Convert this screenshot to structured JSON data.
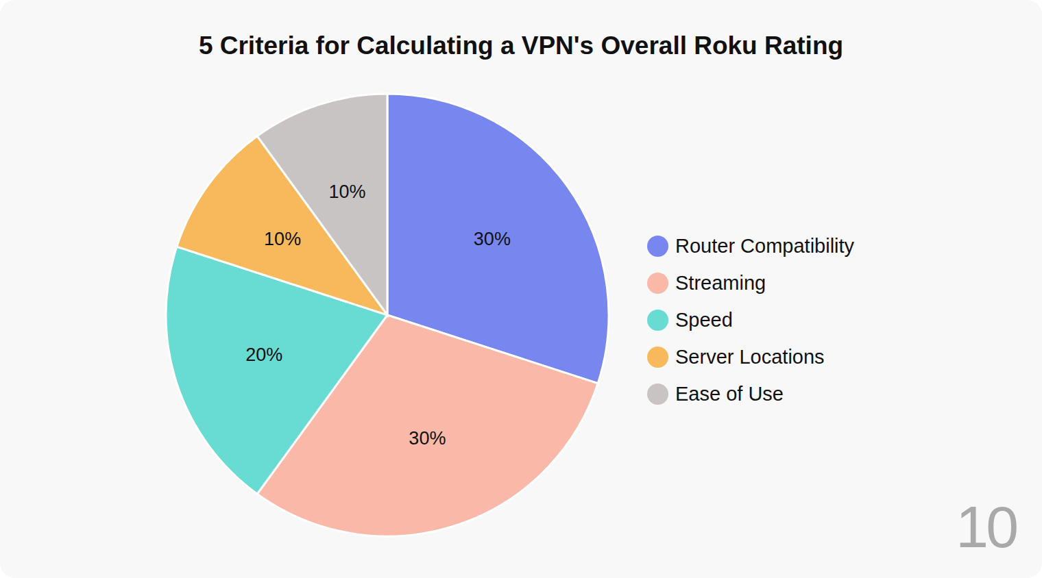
{
  "chart_data": {
    "type": "pie",
    "title": "5 Criteria for Calculating a VPN's Overall Roku Rating",
    "categories": [
      "Router Compatibility",
      "Streaming",
      "Speed",
      "Server Locations",
      "Ease of Use"
    ],
    "values": [
      30,
      30,
      20,
      10,
      10
    ],
    "value_labels": [
      "30%",
      "30%",
      "20%",
      "10%",
      "10%"
    ],
    "colors": [
      "#7886f0",
      "#f9b8a8",
      "#68dbd3",
      "#f8b95c",
      "#c8c4c3"
    ],
    "data_labels": true,
    "legend": "right",
    "annotations": [
      "10"
    ]
  }
}
